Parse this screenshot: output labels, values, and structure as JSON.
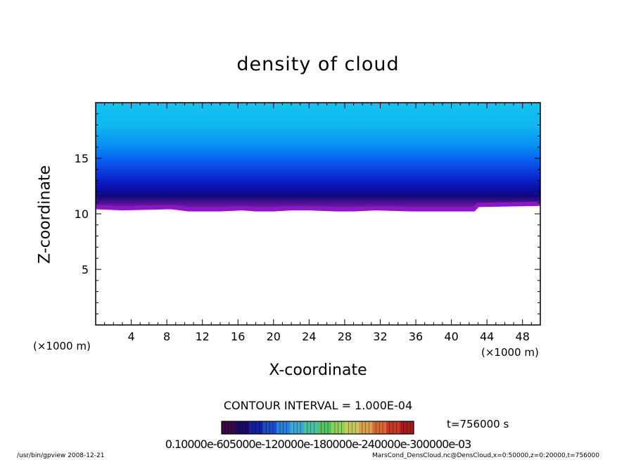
{
  "chart_data": {
    "type": "heatmap",
    "title": "density of cloud",
    "xlabel": "X-coordinate",
    "ylabel": "Z-coordinate",
    "x_unit": "(×1000 m)",
    "z_unit": "(×1000 m)",
    "xlim": [
      0,
      50
    ],
    "ylim": [
      0,
      20
    ],
    "x_ticks": [
      4,
      8,
      12,
      16,
      20,
      24,
      28,
      32,
      36,
      40,
      44,
      48
    ],
    "y_ticks": [
      5,
      10,
      15
    ],
    "cloud_base_z": [
      [
        0.0,
        10.6
      ],
      [
        3.0,
        10.5
      ],
      [
        8.5,
        10.6
      ],
      [
        10.5,
        10.4
      ],
      [
        14.0,
        10.4
      ],
      [
        16.5,
        10.5
      ],
      [
        18.0,
        10.4
      ],
      [
        20.0,
        10.4
      ],
      [
        22.0,
        10.5
      ],
      [
        24.0,
        10.5
      ],
      [
        27.0,
        10.4
      ],
      [
        29.0,
        10.4
      ],
      [
        31.5,
        10.5
      ],
      [
        35.5,
        10.4
      ],
      [
        40.5,
        10.4
      ],
      [
        42.5,
        10.4
      ],
      [
        43.0,
        10.8
      ],
      [
        50.0,
        10.9
      ]
    ],
    "cloud_top_z": 20,
    "contour_interval": "CONTOUR INTERVAL = 1.000E-04",
    "colorbar_labels": "0.10000e-605000e-120000e-180000e-240000e-300000e-03",
    "colorbar_colors": [
      "#3a0a46",
      "#1a0a66",
      "#1220a0",
      "#1e4cc8",
      "#2a7fd8",
      "#3fa8d0",
      "#4bc0a0",
      "#56c266",
      "#8fd05a",
      "#c8c860",
      "#d8a050",
      "#d86838",
      "#c43a2a",
      "#a02020"
    ],
    "cloud_colors": [
      "#8a1ac0",
      "#2a0a70",
      "#0a0aa0",
      "#0a20d0",
      "#0a4af0",
      "#0a78f4",
      "#10a6f0",
      "#22c4f2"
    ]
  },
  "time_label": "t=756000 s",
  "footer_left": "/usr/bin/gpview   2008-12-21",
  "footer_right": "MarsCond_DensCloud.nc@DensCloud,x=0:50000,z=0:20000,t=756000"
}
